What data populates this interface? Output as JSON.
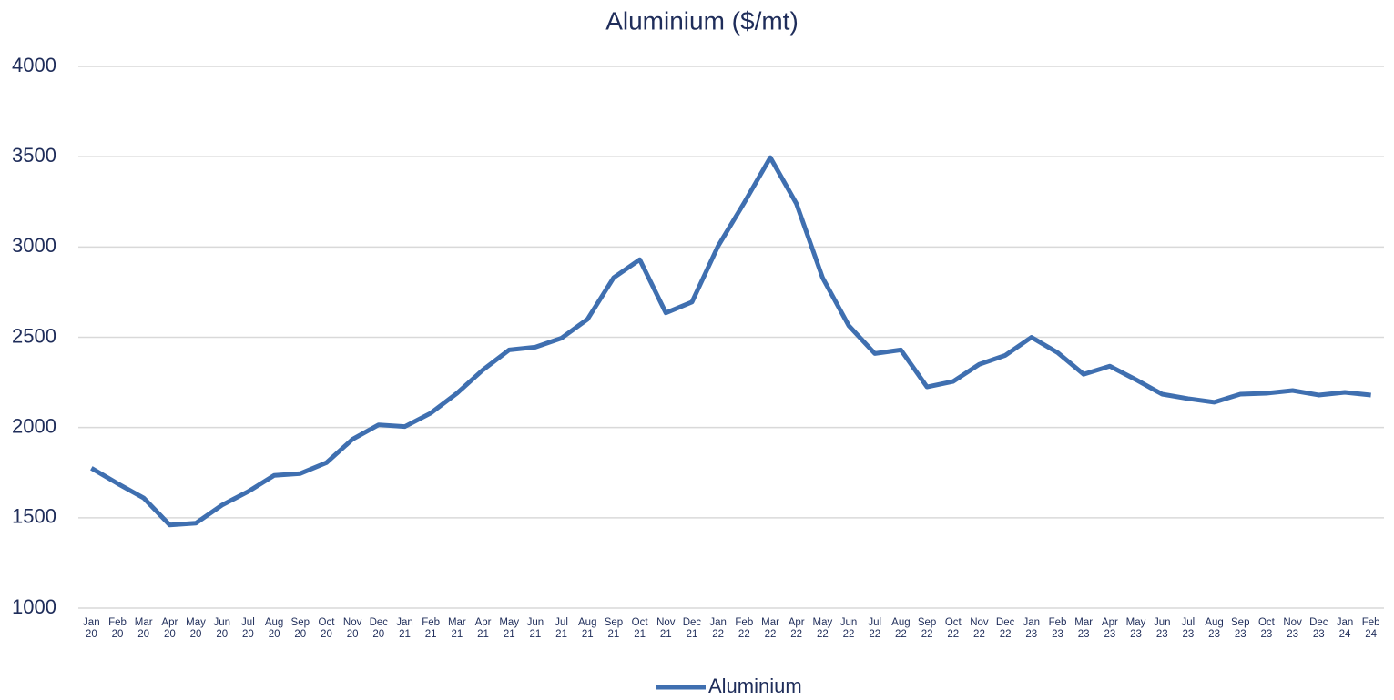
{
  "chart_data": {
    "type": "line",
    "title": "Aluminium ($/mt)",
    "categories": [
      "Jan 20",
      "Feb 20",
      "Mar 20",
      "Apr 20",
      "May 20",
      "Jun 20",
      "Jul 20",
      "Aug 20",
      "Sep 20",
      "Oct 20",
      "Nov 20",
      "Dec 20",
      "Jan 21",
      "Feb 21",
      "Mar 21",
      "Apr 21",
      "May 21",
      "Jun 21",
      "Jul 21",
      "Aug 21",
      "Sep 21",
      "Oct 21",
      "Nov 21",
      "Dec 21",
      "Jan 22",
      "Feb 22",
      "Mar 22",
      "Apr 22",
      "May 22",
      "Jun 22",
      "Jul 22",
      "Aug 22",
      "Sep 22",
      "Oct 22",
      "Nov 22",
      "Dec 22",
      "Jan 23",
      "Feb 23",
      "Mar 23",
      "Apr 23",
      "May 23",
      "Jun 23",
      "Jul 23",
      "Aug 23",
      "Sep 23",
      "Oct 23",
      "Nov 23",
      "Dec 23",
      "Jan 24",
      "Feb 24"
    ],
    "series": [
      {
        "name": "Aluminium",
        "color": "#3f6fb0",
        "values": [
          1775,
          1690,
          1610,
          1460,
          1470,
          1570,
          1645,
          1735,
          1745,
          1805,
          1935,
          2015,
          2005,
          2080,
          2190,
          2320,
          2430,
          2445,
          2495,
          2600,
          2830,
          2930,
          2635,
          2695,
          3005,
          3245,
          3495,
          3240,
          2830,
          2565,
          2410,
          2430,
          2225,
          2255,
          2350,
          2400,
          2500,
          2415,
          2295,
          2340,
          2265,
          2185,
          2160,
          2140,
          2185,
          2190,
          2205,
          2180,
          2195,
          2180
        ]
      }
    ],
    "ylim": [
      1000,
      4000
    ],
    "yticks": [
      1000,
      1500,
      2000,
      2500,
      3000,
      3500,
      4000
    ],
    "grid": true,
    "legend": "bottom"
  }
}
